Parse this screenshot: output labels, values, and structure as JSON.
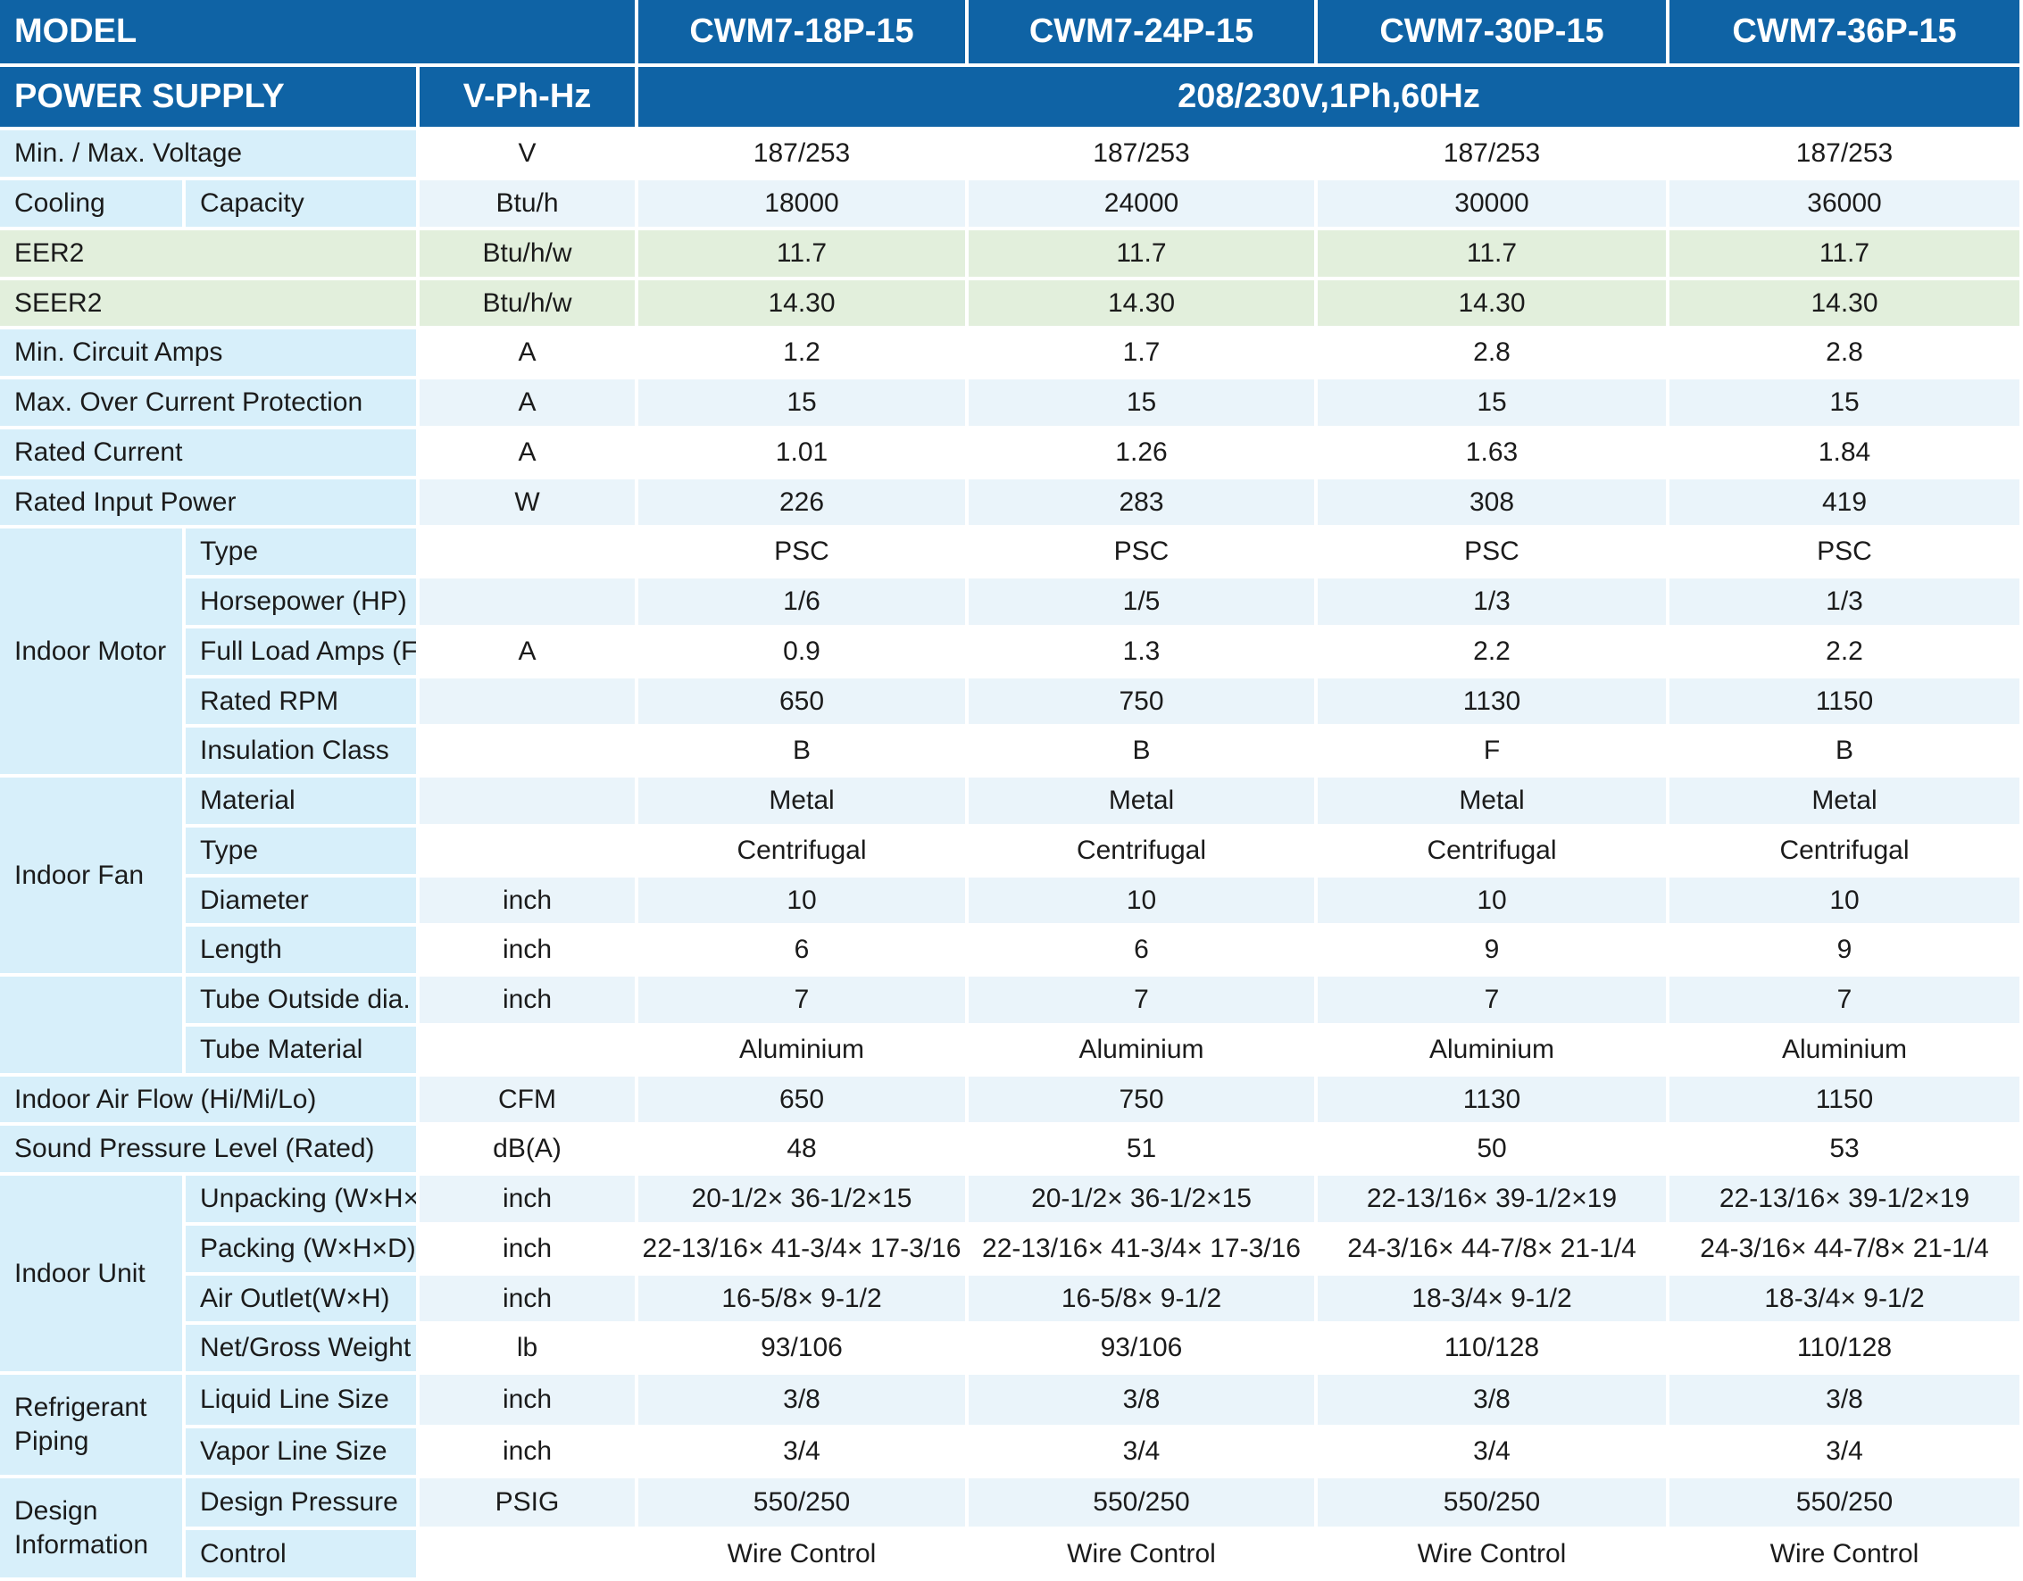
{
  "header": {
    "model_label": "MODEL",
    "models": [
      "CWM7-18P-15",
      "CWM7-24P-15",
      "CWM7-30P-15",
      "CWM7-36P-15"
    ],
    "power_label": "POWER SUPPLY",
    "power_unit": "V-Ph-Hz",
    "power_value": "208/230V,1Ph,60Hz"
  },
  "colors": {
    "header": "#0f63a5",
    "label_blue": "#d7effa",
    "value_blue": "#eaf4fa",
    "label_green": "#e2efdc",
    "value_green": "#e2efdc",
    "grid": "#ffffff",
    "text": "#1b1b1b"
  },
  "groups": [
    "Cooling",
    "Indoor Motor",
    "Indoor Fan",
    "",
    "Indoor Unit",
    "Refrigerant Piping",
    "Design Information"
  ],
  "rows": [
    {
      "name": "Min. / Max. Voltage",
      "unit": "V",
      "values": [
        "187/253",
        "187/253",
        "187/253",
        "187/253"
      ],
      "tone": "blue"
    },
    {
      "name": "Capacity",
      "unit": "Btu/h",
      "values": [
        "18000",
        "24000",
        "30000",
        "36000"
      ],
      "tone": "blue",
      "group": 0
    },
    {
      "name": "EER2",
      "unit": "Btu/h/w",
      "values": [
        "11.7",
        "11.7",
        "11.7",
        "11.7"
      ],
      "tone": "green"
    },
    {
      "name": "SEER2",
      "unit": "Btu/h/w",
      "values": [
        "14.30",
        "14.30",
        "14.30",
        "14.30"
      ],
      "tone": "green"
    },
    {
      "name": "Min. Circuit Amps",
      "unit": "A",
      "values": [
        "1.2",
        "1.7",
        "2.8",
        "2.8"
      ],
      "tone": "blue"
    },
    {
      "name": "Max. Over Current Protection",
      "unit": "A",
      "values": [
        "15",
        "15",
        "15",
        "15"
      ],
      "tone": "blue"
    },
    {
      "name": "Rated Current",
      "unit": "A",
      "values": [
        "1.01",
        "1.26",
        "1.63",
        "1.84"
      ],
      "tone": "blue"
    },
    {
      "name": "Rated Input Power",
      "unit": "W",
      "values": [
        "226",
        "283",
        "308",
        "419"
      ],
      "tone": "blue"
    },
    {
      "name": "Type",
      "unit": "",
      "values": [
        "PSC",
        "PSC",
        "PSC",
        "PSC"
      ],
      "tone": "blue",
      "group": 1
    },
    {
      "name": "Horsepower (HP)",
      "unit": "",
      "values": [
        "1/6",
        "1/5",
        "1/3",
        "1/3"
      ],
      "tone": "blue",
      "group": 1
    },
    {
      "name": "Full Load Amps (FLA)",
      "unit": "A",
      "values": [
        "0.9",
        "1.3",
        "2.2",
        "2.2"
      ],
      "tone": "blue",
      "group": 1
    },
    {
      "name": "Rated RPM",
      "unit": "",
      "values": [
        "650",
        "750",
        "1130",
        "1150"
      ],
      "tone": "blue",
      "group": 1
    },
    {
      "name": "Insulation Class",
      "unit": "",
      "values": [
        "B",
        "B",
        "F",
        "B"
      ],
      "tone": "blue",
      "group": 1
    },
    {
      "name": "Material",
      "unit": "",
      "values": [
        "Metal",
        "Metal",
        "Metal",
        "Metal"
      ],
      "tone": "blue",
      "group": 2
    },
    {
      "name": "Type",
      "unit": "",
      "values": [
        "Centrifugal",
        "Centrifugal",
        "Centrifugal",
        "Centrifugal"
      ],
      "tone": "blue",
      "group": 2
    },
    {
      "name": "Diameter",
      "unit": "inch",
      "values": [
        "10",
        "10",
        "10",
        "10"
      ],
      "tone": "blue",
      "group": 2
    },
    {
      "name": "Length",
      "unit": "inch",
      "values": [
        "6",
        "6",
        "9",
        "9"
      ],
      "tone": "blue",
      "group": 2
    },
    {
      "name": "Tube Outside dia.",
      "unit": "inch",
      "values": [
        "7",
        "7",
        "7",
        "7"
      ],
      "tone": "blue",
      "group": 3
    },
    {
      "name": "Tube Material",
      "unit": "",
      "values": [
        "Aluminium",
        "Aluminium",
        "Aluminium",
        "Aluminium"
      ],
      "tone": "blue",
      "group": 3
    },
    {
      "name": "Indoor Air Flow (Hi/Mi/Lo)",
      "unit": "CFM",
      "values": [
        "650",
        "750",
        "1130",
        "1150"
      ],
      "tone": "blue"
    },
    {
      "name": "Sound Pressure Level (Rated)",
      "unit": "dB(A)",
      "values": [
        "48",
        "51",
        "50",
        "53"
      ],
      "tone": "blue"
    },
    {
      "name": "Unpacking (W×H×D)",
      "unit": "inch",
      "values": [
        "20-1/2× 36-1/2×15",
        "20-1/2× 36-1/2×15",
        "22-13/16× 39-1/2×19",
        "22-13/16× 39-1/2×19"
      ],
      "tone": "blue",
      "group": 4
    },
    {
      "name": "Packing  (W×H×D)",
      "unit": "inch",
      "values": [
        "22-13/16× 41-3/4× 17-3/16",
        "22-13/16× 41-3/4× 17-3/16",
        "24-3/16× 44-7/8× 21-1/4",
        "24-3/16× 44-7/8× 21-1/4"
      ],
      "tone": "blue",
      "group": 4
    },
    {
      "name": "Air Outlet(W×H)",
      "unit": "inch",
      "values": [
        "16-5/8× 9-1/2",
        "16-5/8× 9-1/2",
        "18-3/4× 9-1/2",
        "18-3/4× 9-1/2"
      ],
      "tone": "blue",
      "group": 4
    },
    {
      "name": "Net/Gross Weight",
      "unit": "lb",
      "values": [
        "93/106",
        "93/106",
        "110/128",
        "110/128"
      ],
      "tone": "blue",
      "group": 4
    },
    {
      "name": "Liquid Line Size",
      "unit": "inch",
      "values": [
        "3/8",
        "3/8",
        "3/8",
        "3/8"
      ],
      "tone": "blue",
      "group": 5
    },
    {
      "name": "Vapor Line Size",
      "unit": "inch",
      "values": [
        "3/4",
        "3/4",
        "3/4",
        "3/4"
      ],
      "tone": "blue",
      "group": 5
    },
    {
      "name": "Design Pressure",
      "unit": "PSIG",
      "values": [
        "550/250",
        "550/250",
        "550/250",
        "550/250"
      ],
      "tone": "blue",
      "group": 6
    },
    {
      "name": "Control",
      "unit": "",
      "values": [
        "Wire Control",
        "Wire Control",
        "Wire Control",
        "Wire Control"
      ],
      "tone": "blue",
      "group": 6
    }
  ]
}
